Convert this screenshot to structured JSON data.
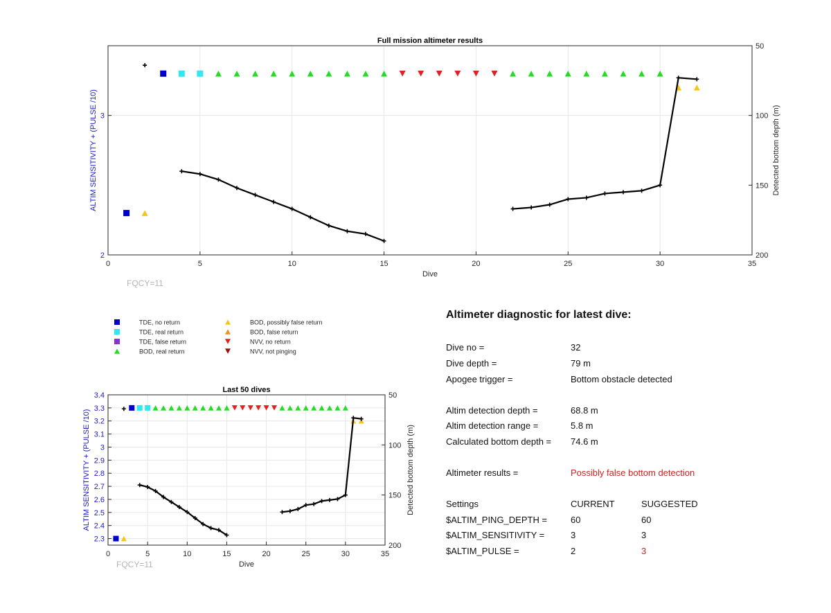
{
  "colors": {
    "tde_no_return": "#0000cc",
    "tde_real_return": "#33e6f0",
    "tde_false_return": "#8833cc",
    "bod_real_return": "#22dd22",
    "bod_possibly_false_return": "#f5c518",
    "bod_false_return": "#f09020",
    "nvv_no_return": "#dd2222",
    "nvv_not_pinging": "#991111",
    "left_axis": "#1a1acc",
    "depth_line": "#000000",
    "warning_text": "#cc2222"
  },
  "chart_data": [
    {
      "type": "scatter",
      "title": "Full mission altimeter results",
      "xlabel": "Dive",
      "ylabel": "ALTIM SENSITIVITY + (PULSE /10)",
      "y2label": "Detected bottom depth (m)",
      "xlim": [
        0,
        35
      ],
      "ylim": [
        2,
        3.5
      ],
      "y2lim": [
        200,
        50
      ],
      "y2_reversed": true,
      "xticks": [
        0,
        5,
        10,
        15,
        20,
        25,
        30,
        35
      ],
      "yticks": [
        2,
        3
      ],
      "y2ticks": [
        50,
        100,
        150,
        200
      ],
      "grid": true,
      "annotation": "FQCY=11",
      "markers": [
        {
          "x": 1,
          "y": 2.3,
          "cat": "tde_no_return"
        },
        {
          "x": 2,
          "y": 2.3,
          "cat": "bod_possibly_false_return"
        },
        {
          "x": 3,
          "y": 3.3,
          "cat": "tde_no_return"
        },
        {
          "x": 4,
          "y": 3.3,
          "cat": "tde_real_return"
        },
        {
          "x": 5,
          "y": 3.3,
          "cat": "tde_real_return"
        },
        {
          "x": 6,
          "y": 3.3,
          "cat": "bod_real_return"
        },
        {
          "x": 7,
          "y": 3.3,
          "cat": "bod_real_return"
        },
        {
          "x": 8,
          "y": 3.3,
          "cat": "bod_real_return"
        },
        {
          "x": 9,
          "y": 3.3,
          "cat": "bod_real_return"
        },
        {
          "x": 10,
          "y": 3.3,
          "cat": "bod_real_return"
        },
        {
          "x": 11,
          "y": 3.3,
          "cat": "bod_real_return"
        },
        {
          "x": 12,
          "y": 3.3,
          "cat": "bod_real_return"
        },
        {
          "x": 13,
          "y": 3.3,
          "cat": "bod_real_return"
        },
        {
          "x": 14,
          "y": 3.3,
          "cat": "bod_real_return"
        },
        {
          "x": 15,
          "y": 3.3,
          "cat": "bod_real_return"
        },
        {
          "x": 16,
          "y": 3.3,
          "cat": "nvv_no_return"
        },
        {
          "x": 17,
          "y": 3.3,
          "cat": "nvv_no_return"
        },
        {
          "x": 18,
          "y": 3.3,
          "cat": "nvv_no_return"
        },
        {
          "x": 19,
          "y": 3.3,
          "cat": "nvv_no_return"
        },
        {
          "x": 20,
          "y": 3.3,
          "cat": "nvv_no_return"
        },
        {
          "x": 21,
          "y": 3.3,
          "cat": "nvv_no_return"
        },
        {
          "x": 22,
          "y": 3.3,
          "cat": "bod_real_return"
        },
        {
          "x": 23,
          "y": 3.3,
          "cat": "bod_real_return"
        },
        {
          "x": 24,
          "y": 3.3,
          "cat": "bod_real_return"
        },
        {
          "x": 25,
          "y": 3.3,
          "cat": "bod_real_return"
        },
        {
          "x": 26,
          "y": 3.3,
          "cat": "bod_real_return"
        },
        {
          "x": 27,
          "y": 3.3,
          "cat": "bod_real_return"
        },
        {
          "x": 28,
          "y": 3.3,
          "cat": "bod_real_return"
        },
        {
          "x": 29,
          "y": 3.3,
          "cat": "bod_real_return"
        },
        {
          "x": 30,
          "y": 3.3,
          "cat": "bod_real_return"
        },
        {
          "x": 31,
          "y": 3.2,
          "cat": "bod_possibly_false_return"
        },
        {
          "x": 32,
          "y": 3.2,
          "cat": "bod_possibly_false_return"
        }
      ],
      "depth_points": [
        {
          "x": 2,
          "y": 64
        },
        {
          "x": 4,
          "y": 140
        },
        {
          "x": 5,
          "y": 142
        },
        {
          "x": 6,
          "y": 146
        },
        {
          "x": 7,
          "y": 152
        },
        {
          "x": 8,
          "y": 157
        },
        {
          "x": 9,
          "y": 162
        },
        {
          "x": 10,
          "y": 167
        },
        {
          "x": 11,
          "y": 173
        },
        {
          "x": 12,
          "y": 179
        },
        {
          "x": 13,
          "y": 183
        },
        {
          "x": 14,
          "y": 185
        },
        {
          "x": 15,
          "y": 190
        },
        {
          "x": 22,
          "y": 167
        },
        {
          "x": 23,
          "y": 166
        },
        {
          "x": 24,
          "y": 164
        },
        {
          "x": 25,
          "y": 160
        },
        {
          "x": 26,
          "y": 159
        },
        {
          "x": 27,
          "y": 156
        },
        {
          "x": 28,
          "y": 155
        },
        {
          "x": 29,
          "y": 154
        },
        {
          "x": 30,
          "y": 150
        },
        {
          "x": 31,
          "y": 73
        },
        {
          "x": 32,
          "y": 74
        }
      ]
    },
    {
      "type": "scatter",
      "title": "Last 50 dives",
      "xlabel": "Dive",
      "ylabel": "ALTIM SENSITIVITY + (PULSE /10)",
      "y2label": "Detected bottom depth (m)",
      "xlim": [
        0,
        35
      ],
      "ylim": [
        2.25,
        3.4
      ],
      "y2lim": [
        200,
        50
      ],
      "y2_reversed": true,
      "xticks": [
        0,
        5,
        10,
        15,
        20,
        25,
        30,
        35
      ],
      "yticks": [
        2.3,
        2.4,
        2.5,
        2.6,
        2.7,
        2.8,
        2.9,
        3,
        3.1,
        3.2,
        3.3,
        3.4
      ],
      "y2ticks": [
        50,
        100,
        150,
        200
      ],
      "grid": true,
      "annotation": "FQCY=11",
      "markers_ref": 0,
      "depth_ref": 0
    }
  ],
  "legend": [
    {
      "label": "TDE, no return",
      "cat": "tde_no_return",
      "shape": "square"
    },
    {
      "label": "TDE, real return",
      "cat": "tde_real_return",
      "shape": "square"
    },
    {
      "label": "TDE, false return",
      "cat": "tde_false_return",
      "shape": "square"
    },
    {
      "label": "BOD, real return",
      "cat": "bod_real_return",
      "shape": "triangle-up"
    },
    {
      "label": "BOD, possibly false return",
      "cat": "bod_possibly_false_return",
      "shape": "triangle-up"
    },
    {
      "label": "BOD, false return",
      "cat": "bod_false_return",
      "shape": "triangle-up"
    },
    {
      "label": "NVV, no return",
      "cat": "nvv_no_return",
      "shape": "triangle-down"
    },
    {
      "label": "NVV, not pinging",
      "cat": "nvv_not_pinging",
      "shape": "triangle-down"
    }
  ],
  "diagnostic": {
    "title": "Altimeter diagnostic for latest dive:",
    "dive_no_label": "Dive no =",
    "dive_no": "32",
    "dive_depth_label": "Dive depth =",
    "dive_depth": "79 m",
    "apogee_label": "Apogee trigger =",
    "apogee": "Bottom obstacle detected",
    "detection_depth_label": "Altim detection depth =",
    "detection_depth": "68.8 m",
    "detection_range_label": "Altim detection range =",
    "detection_range": "5.8 m",
    "calc_depth_label": "Calculated bottom depth =",
    "calc_depth": "74.6 m",
    "results_label": "Altimeter results =",
    "results": "Possibly false bottom detection",
    "settings_label": "Settings",
    "current_label": "CURRENT",
    "suggested_label": "SUGGESTED",
    "ping_depth_label": "$ALTIM_PING_DEPTH =",
    "ping_depth_current": "60",
    "ping_depth_suggested": "60",
    "sensitivity_label": "$ALTIM_SENSITIVITY =",
    "sensitivity_current": "3",
    "sensitivity_suggested": "3",
    "pulse_label": "$ALTIM_PULSE =",
    "pulse_current": "2",
    "pulse_suggested": "3"
  }
}
